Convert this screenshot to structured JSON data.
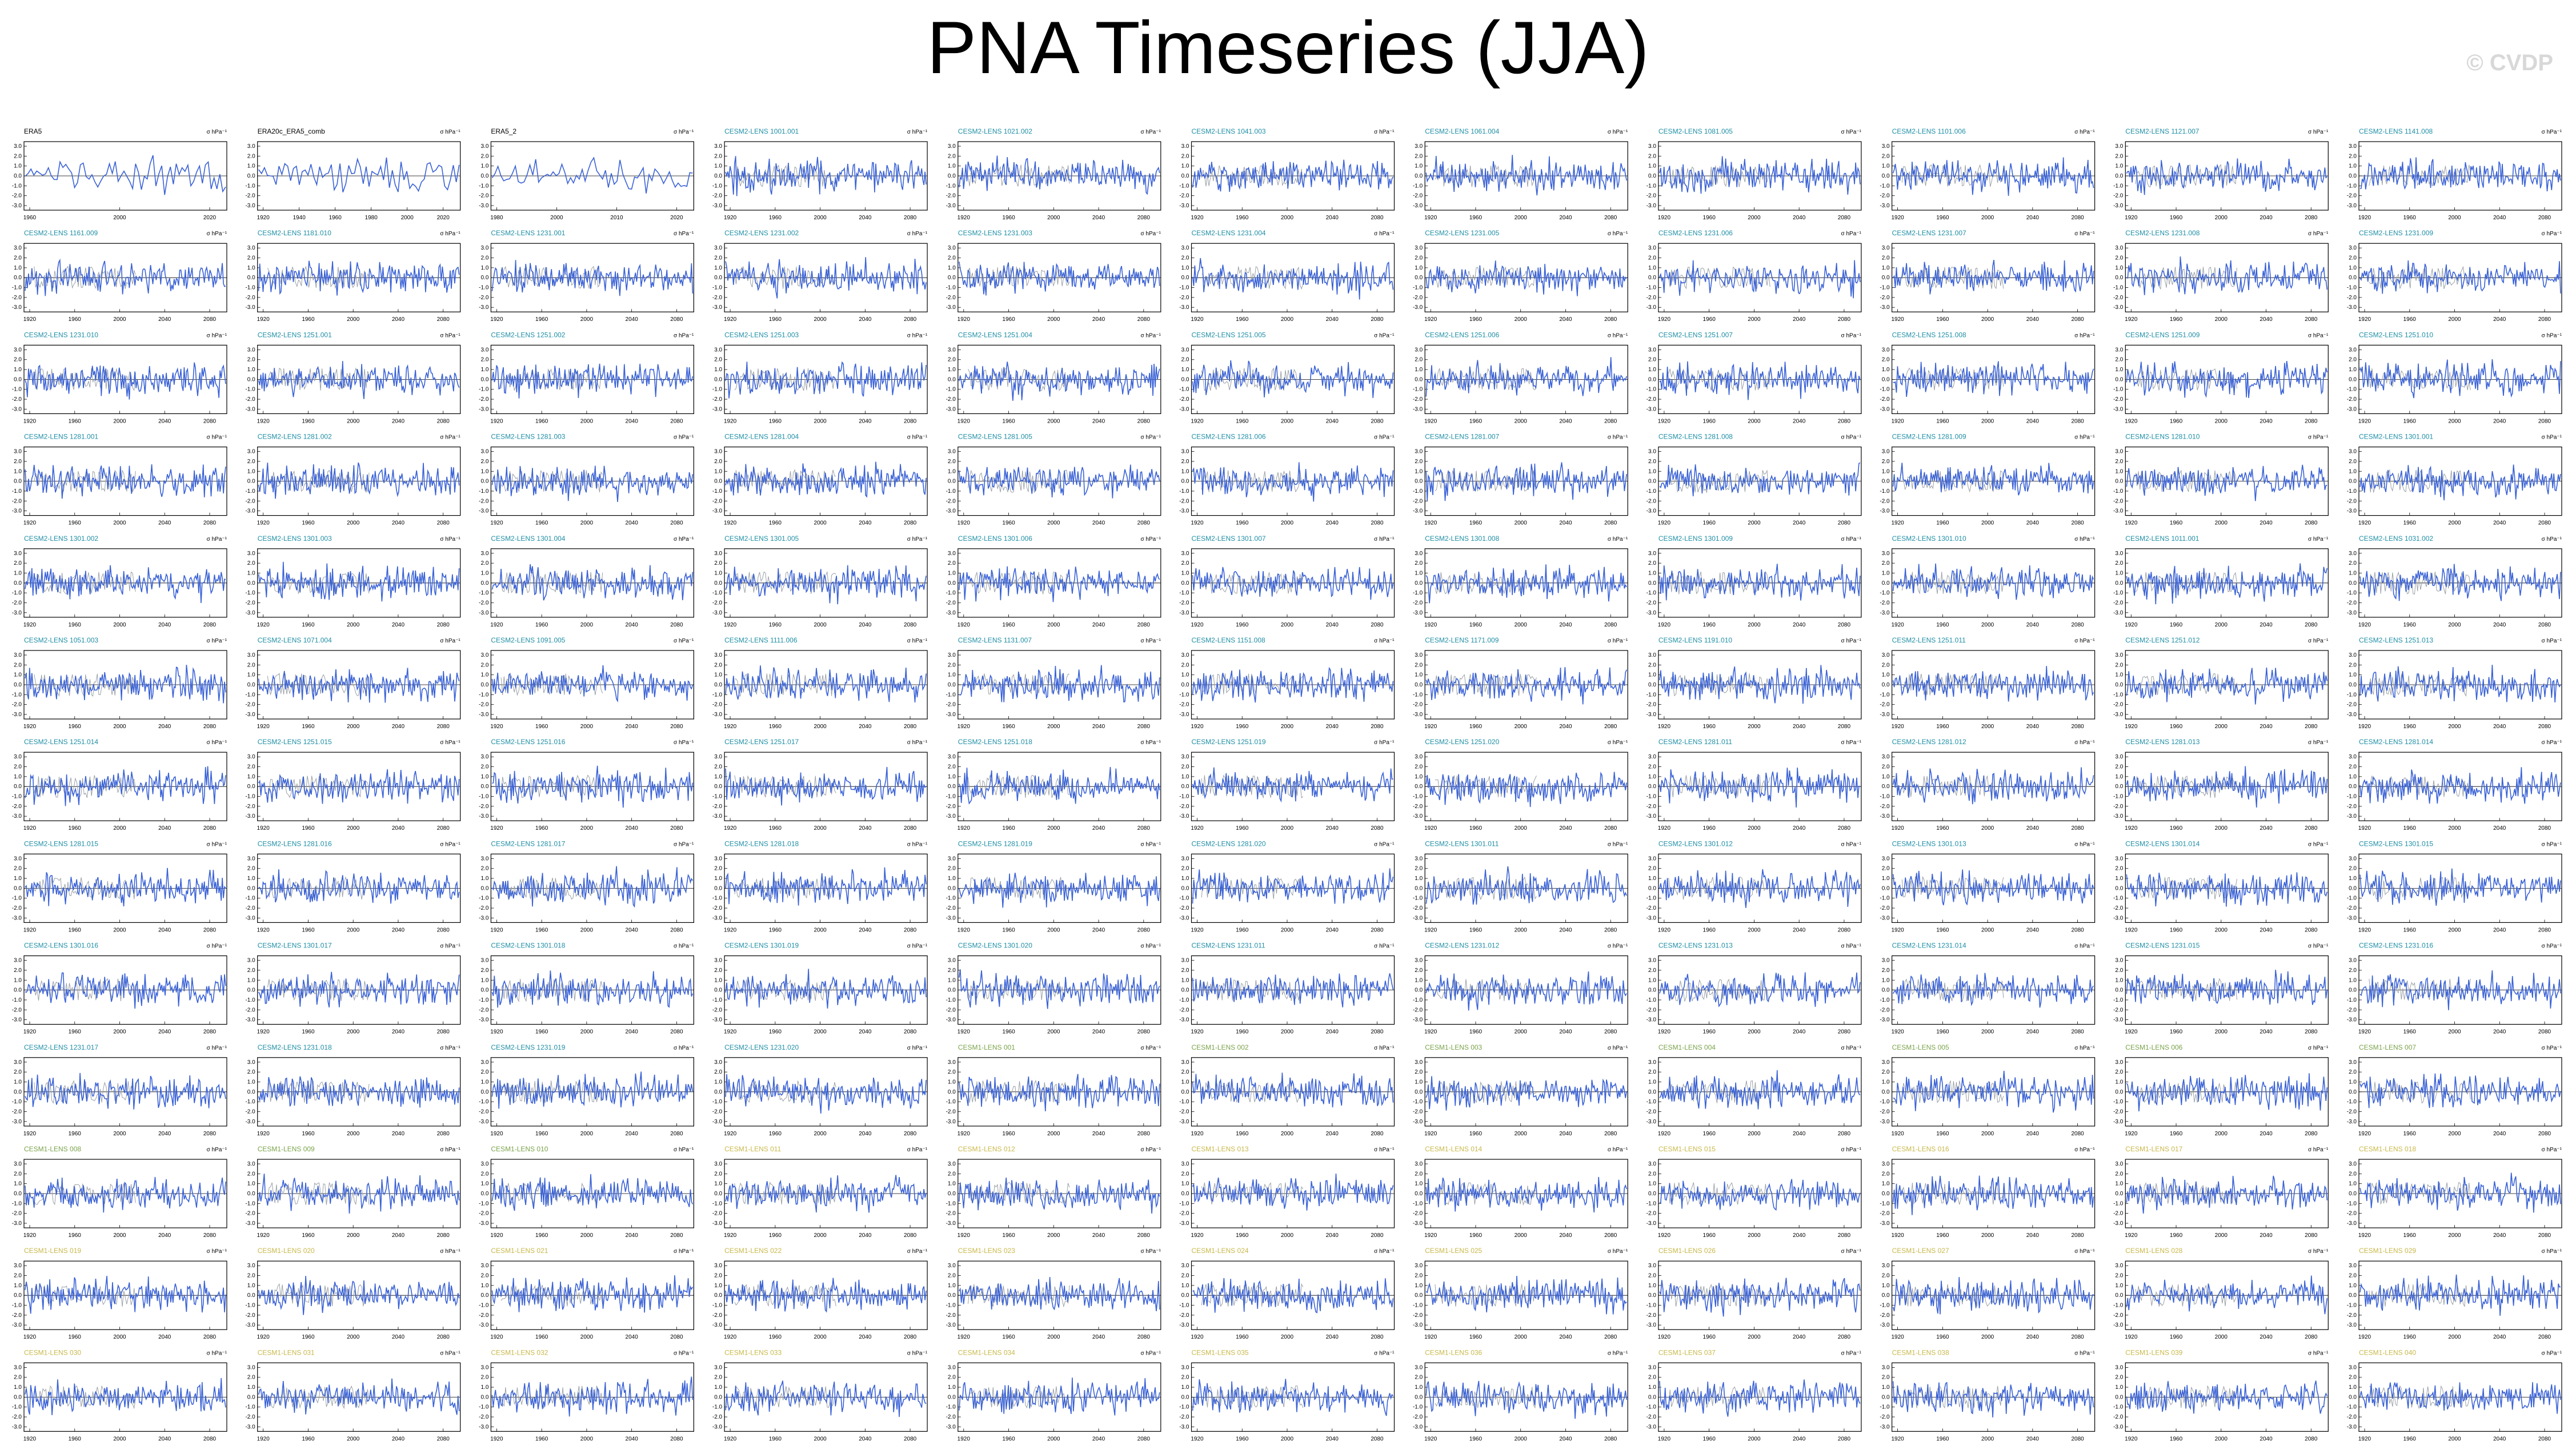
{
  "page": {
    "title": "PNA Timeseries (JJA)",
    "watermark": "© CVDP"
  },
  "colors": {
    "obs_title": "#000000",
    "cesm2_title": "#1f8fa6",
    "cesm1_title": "#7aa34a",
    "cesm1b_title": "#c9b84a",
    "series_line": "#3a62d6",
    "spread_line": "#9aa0a6"
  },
  "chart_data": {
    "type": "line",
    "panel_count": 143,
    "ncols": 11,
    "units": "σ hPa⁻¹",
    "y_ticks": [
      "3.0",
      "2.0",
      "1.0",
      "0.0",
      "-1.0",
      "-2.0",
      "-3.0"
    ],
    "x_ticks_obs": [
      "1960",
      "2000",
      "2020"
    ],
    "x_ticks_model": [
      "1920",
      "1960",
      "2000",
      "2040",
      "2080"
    ],
    "panels": [
      {
        "title": "ERA5",
        "x_ticks": [
          "1960",
          "2000",
          "2020"
        ]
      },
      {
        "title": "ERA20c_ERA5_comb",
        "x_ticks": [
          "1920",
          "1940",
          "1960",
          "1980",
          "2000",
          "2020"
        ]
      },
      {
        "title": "ERA5_2",
        "x_ticks": [
          "1980",
          "2000",
          "2010",
          "2020"
        ]
      },
      {
        "title": "CESM2-LENS 1001.001"
      },
      {
        "title": "CESM2-LENS 1021.002"
      },
      {
        "title": "CESM2-LENS 1041.003"
      },
      {
        "title": "CESM2-LENS 1061.004"
      },
      {
        "title": "CESM2-LENS 1081.005"
      },
      {
        "title": "CESM2-LENS 1101.006"
      },
      {
        "title": "CESM2-LENS 1121.007"
      },
      {
        "title": "CESM2-LENS 1141.008"
      },
      {
        "title": "CESM2-LENS 1161.009"
      },
      {
        "title": "CESM2-LENS 1181.010"
      },
      {
        "title": "CESM2-LENS 1231.001"
      },
      {
        "title": "CESM2-LENS 1231.002"
      },
      {
        "title": "CESM2-LENS 1231.003"
      },
      {
        "title": "CESM2-LENS 1231.004"
      },
      {
        "title": "CESM2-LENS 1231.005"
      },
      {
        "title": "CESM2-LENS 1231.006"
      },
      {
        "title": "CESM2-LENS 1231.007"
      },
      {
        "title": "CESM2-LENS 1231.008"
      },
      {
        "title": "CESM2-LENS 1231.009"
      },
      {
        "title": "CESM2-LENS 1231.010"
      },
      {
        "title": "CESM2-LENS 1251.001"
      },
      {
        "title": "CESM2-LENS 1251.002"
      },
      {
        "title": "CESM2-LENS 1251.003"
      },
      {
        "title": "CESM2-LENS 1251.004"
      },
      {
        "title": "CESM2-LENS 1251.005"
      },
      {
        "title": "CESM2-LENS 1251.006"
      },
      {
        "title": "CESM2-LENS 1251.007"
      },
      {
        "title": "CESM2-LENS 1251.008"
      },
      {
        "title": "CESM2-LENS 1251.009"
      },
      {
        "title": "CESM2-LENS 1251.010"
      },
      {
        "title": "CESM2-LENS 1281.001"
      },
      {
        "title": "CESM2-LENS 1281.002"
      },
      {
        "title": "CESM2-LENS 1281.003"
      },
      {
        "title": "CESM2-LENS 1281.004"
      },
      {
        "title": "CESM2-LENS 1281.005"
      },
      {
        "title": "CESM2-LENS 1281.006"
      },
      {
        "title": "CESM2-LENS 1281.007"
      },
      {
        "title": "CESM2-LENS 1281.008"
      },
      {
        "title": "CESM2-LENS 1281.009"
      },
      {
        "title": "CESM2-LENS 1281.010"
      },
      {
        "title": "CESM2-LENS 1301.001"
      },
      {
        "title": "CESM2-LENS 1301.002"
      },
      {
        "title": "CESM2-LENS 1301.003"
      },
      {
        "title": "CESM2-LENS 1301.004"
      },
      {
        "title": "CESM2-LENS 1301.005"
      },
      {
        "title": "CESM2-LENS 1301.006"
      },
      {
        "title": "CESM2-LENS 1301.007"
      },
      {
        "title": "CESM2-LENS 1301.008"
      },
      {
        "title": "CESM2-LENS 1301.009"
      },
      {
        "title": "CESM2-LENS 1301.010"
      },
      {
        "title": "CESM2-LENS 1011.001"
      },
      {
        "title": "CESM2-LENS 1031.002"
      },
      {
        "title": "CESM2-LENS 1051.003"
      },
      {
        "title": "CESM2-LENS 1071.004"
      },
      {
        "title": "CESM2-LENS 1091.005"
      },
      {
        "title": "CESM2-LENS 1111.006"
      },
      {
        "title": "CESM2-LENS 1131.007"
      },
      {
        "title": "CESM2-LENS 1151.008"
      },
      {
        "title": "CESM2-LENS 1171.009"
      },
      {
        "title": "CESM2-LENS 1191.010"
      },
      {
        "title": "CESM2-LENS 1251.011"
      },
      {
        "title": "CESM2-LENS 1251.012"
      },
      {
        "title": "CESM2-LENS 1251.013"
      },
      {
        "title": "CESM2-LENS 1251.014"
      },
      {
        "title": "CESM2-LENS 1251.015"
      },
      {
        "title": "CESM2-LENS 1251.016"
      },
      {
        "title": "CESM2-LENS 1251.017"
      },
      {
        "title": "CESM2-LENS 1251.018"
      },
      {
        "title": "CESM2-LENS 1251.019"
      },
      {
        "title": "CESM2-LENS 1251.020"
      },
      {
        "title": "CESM2-LENS 1281.011"
      },
      {
        "title": "CESM2-LENS 1281.012"
      },
      {
        "title": "CESM2-LENS 1281.013"
      },
      {
        "title": "CESM2-LENS 1281.014"
      },
      {
        "title": "CESM2-LENS 1281.015"
      },
      {
        "title": "CESM2-LENS 1281.016"
      },
      {
        "title": "CESM2-LENS 1281.017"
      },
      {
        "title": "CESM2-LENS 1281.018"
      },
      {
        "title": "CESM2-LENS 1281.019"
      },
      {
        "title": "CESM2-LENS 1281.020"
      },
      {
        "title": "CESM2-LENS 1301.011"
      },
      {
        "title": "CESM2-LENS 1301.012"
      },
      {
        "title": "CESM2-LENS 1301.013"
      },
      {
        "title": "CESM2-LENS 1301.014"
      },
      {
        "title": "CESM2-LENS 1301.015"
      },
      {
        "title": "CESM2-LENS 1301.016"
      },
      {
        "title": "CESM2-LENS 1301.017"
      },
      {
        "title": "CESM2-LENS 1301.018"
      },
      {
        "title": "CESM2-LENS 1301.019"
      },
      {
        "title": "CESM2-LENS 1301.020"
      },
      {
        "title": "CESM2-LENS 1231.011"
      },
      {
        "title": "CESM2-LENS 1231.012"
      },
      {
        "title": "CESM2-LENS 1231.013"
      },
      {
        "title": "CESM2-LENS 1231.014"
      },
      {
        "title": "CESM2-LENS 1231.015"
      },
      {
        "title": "CESM2-LENS 1231.016"
      },
      {
        "title": "CESM2-LENS 1231.017"
      },
      {
        "title": "CESM2-LENS 1231.018"
      },
      {
        "title": "CESM2-LENS 1231.019"
      },
      {
        "title": "CESM2-LENS 1231.020"
      },
      {
        "title": "CESM1-LENS 001"
      },
      {
        "title": "CESM1-LENS 002"
      },
      {
        "title": "CESM1-LENS 003"
      },
      {
        "title": "CESM1-LENS 004"
      },
      {
        "title": "CESM1-LENS 005"
      },
      {
        "title": "CESM1-LENS 006"
      },
      {
        "title": "CESM1-LENS 007"
      },
      {
        "title": "CESM1-LENS 008"
      },
      {
        "title": "CESM1-LENS 009"
      },
      {
        "title": "CESM1-LENS 010"
      },
      {
        "title": "CESM1-LENS 011"
      },
      {
        "title": "CESM1-LENS 012"
      },
      {
        "title": "CESM1-LENS 013"
      },
      {
        "title": "CESM1-LENS 014"
      },
      {
        "title": "CESM1-LENS 015"
      },
      {
        "title": "CESM1-LENS 016"
      },
      {
        "title": "CESM1-LENS 017"
      },
      {
        "title": "CESM1-LENS 018"
      },
      {
        "title": "CESM1-LENS 019"
      },
      {
        "title": "CESM1-LENS 020"
      },
      {
        "title": "CESM1-LENS 021"
      },
      {
        "title": "CESM1-LENS 022"
      },
      {
        "title": "CESM1-LENS 023"
      },
      {
        "title": "CESM1-LENS 024"
      },
      {
        "title": "CESM1-LENS 025"
      },
      {
        "title": "CESM1-LENS 026"
      },
      {
        "title": "CESM1-LENS 027"
      },
      {
        "title": "CESM1-LENS 028"
      },
      {
        "title": "CESM1-LENS 029"
      },
      {
        "title": "CESM1-LENS 030"
      },
      {
        "title": "CESM1-LENS 031"
      },
      {
        "title": "CESM1-LENS 032"
      },
      {
        "title": "CESM1-LENS 033"
      },
      {
        "title": "CESM1-LENS 034"
      },
      {
        "title": "CESM1-LENS 035"
      },
      {
        "title": "CESM1-LENS 036"
      },
      {
        "title": "CESM1-LENS 037"
      },
      {
        "title": "CESM1-LENS 038"
      },
      {
        "title": "CESM1-LENS 039"
      },
      {
        "title": "CESM1-LENS 040"
      }
    ]
  }
}
